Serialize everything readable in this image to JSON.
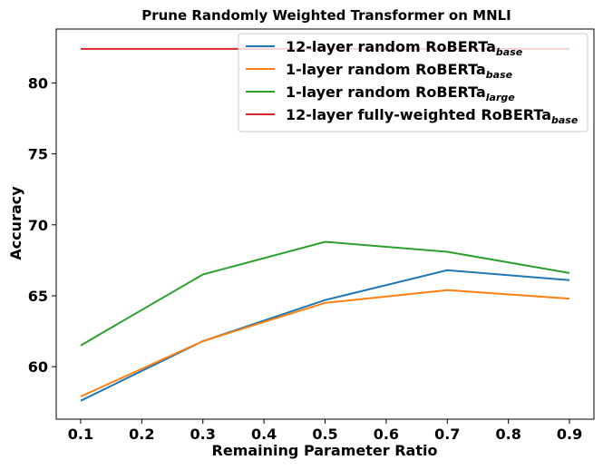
{
  "chart_data": {
    "type": "line",
    "title": "Prune Randomly Weighted Transformer on MNLI",
    "xlabel": "Remaining Parameter Ratio",
    "ylabel": "Accuracy",
    "x": [
      0.1,
      0.3,
      0.5,
      0.7,
      0.9
    ],
    "xticks": [
      "0.1",
      "0.2",
      "0.3",
      "0.4",
      "0.5",
      "0.6",
      "0.7",
      "0.8",
      "0.9"
    ],
    "yticks": [
      "60",
      "65",
      "70",
      "75",
      "80"
    ],
    "xlim": [
      0.06,
      0.94
    ],
    "ylim": [
      56.3,
      83.8
    ],
    "grid": false,
    "legend_position": "upper right",
    "series": [
      {
        "name": "12-layer random RoBERTa",
        "name_sub": "base",
        "color": "#1f77b4",
        "values": [
          57.6,
          61.8,
          64.7,
          66.8,
          66.1
        ]
      },
      {
        "name": "1-layer random RoBERTa",
        "name_sub": "base",
        "color": "#ff7f0e",
        "values": [
          57.9,
          61.8,
          64.5,
          65.4,
          64.8
        ]
      },
      {
        "name": "1-layer random RoBERTa",
        "name_sub": "large",
        "color": "#2ca02c",
        "values": [
          61.5,
          66.5,
          68.8,
          68.1,
          66.6
        ]
      },
      {
        "name": "12-layer fully-weighted RoBERTa",
        "name_sub": "base",
        "color": "#d62728",
        "values": [
          82.4,
          82.4,
          82.4,
          82.4,
          82.4
        ]
      }
    ]
  }
}
